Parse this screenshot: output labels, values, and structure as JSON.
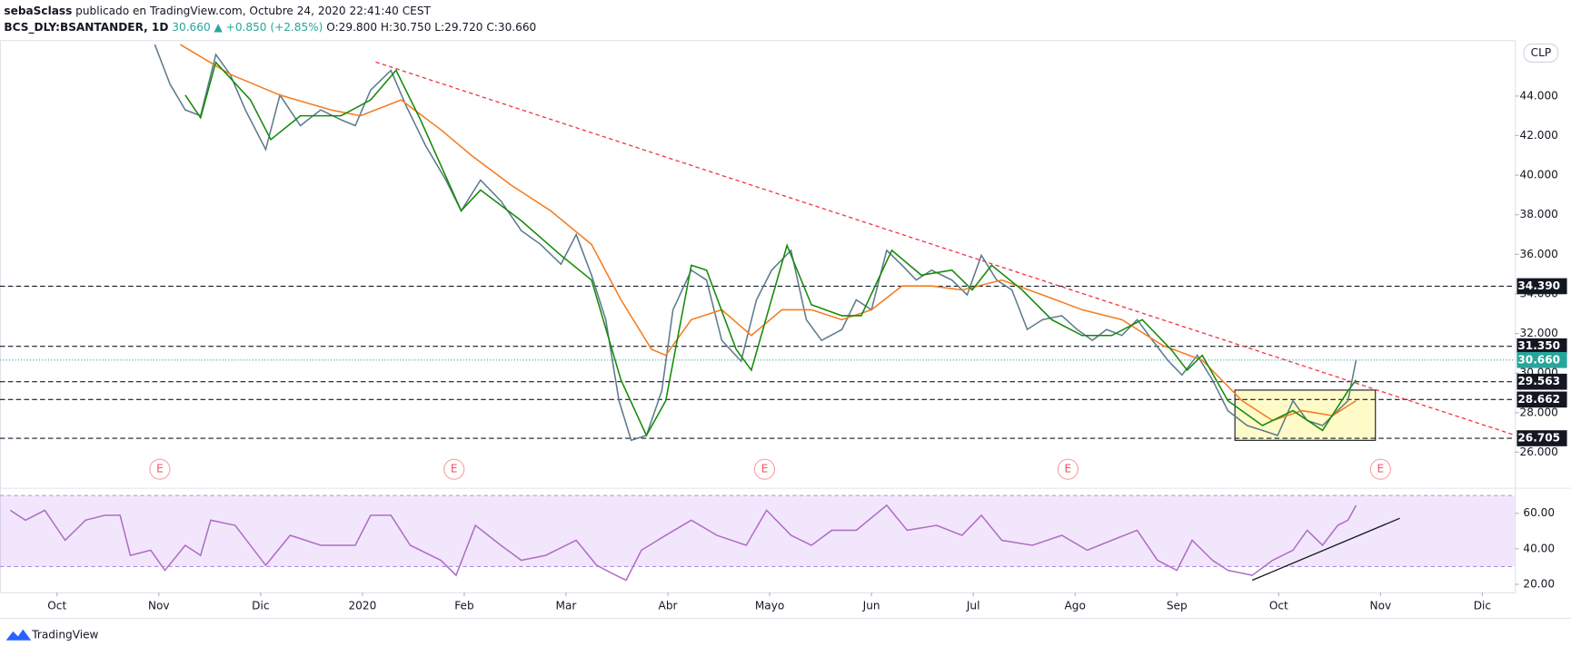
{
  "header": {
    "author": "sebaSclass",
    "published": "publicado en TradingView.com, Octubre 24, 2020 22:41:40 CEST",
    "symbol": "BCS_DLY:BSANTANDER, 1D",
    "last": "30.660",
    "change": "▲ +0.850 (+2.85%)",
    "ohlc": "O:29.800 H:30.750 L:29.720 C:30.660",
    "currency": "CLP"
  },
  "footer": {
    "logo": "TradingView"
  },
  "chart_data": [
    {
      "type": "line",
      "xlim": [
        -0.56,
        14.32
      ],
      "ylim": [
        24.33,
        46.83
      ],
      "yticks": [
        {
          "value": 26,
          "label": "26.000"
        },
        {
          "value": 28,
          "label": "28.000"
        },
        {
          "value": 30,
          "label": "30.000"
        },
        {
          "value": 32,
          "label": "32.000"
        },
        {
          "value": 34,
          "label": "34.000"
        },
        {
          "value": 36,
          "label": "36.000"
        },
        {
          "value": 38,
          "label": "38.000"
        },
        {
          "value": 40,
          "label": "40.000"
        },
        {
          "value": 42,
          "label": "42.000"
        },
        {
          "value": 44,
          "label": "44.000"
        }
      ],
      "series": [
        {
          "color": "#5d7a8c",
          "x": [
            0.96,
            1.11,
            1.26,
            1.41,
            1.56,
            1.7,
            1.85,
            2.05,
            2.19,
            2.39,
            2.59,
            2.79,
            2.93,
            3.08,
            3.28,
            3.43,
            3.62,
            3.82,
            3.97,
            4.16,
            4.36,
            4.56,
            4.75,
            4.95,
            5.1,
            5.25,
            5.39,
            5.52,
            5.64,
            5.79,
            5.94,
            6.05,
            6.23,
            6.38,
            6.53,
            6.72,
            6.87,
            7.02,
            7.21,
            7.36,
            7.51,
            7.71,
            7.85,
            8.0,
            8.15,
            8.3,
            8.44,
            8.59,
            8.79,
            8.94,
            9.08,
            9.23,
            9.38,
            9.53,
            9.68,
            9.87,
            10.02,
            10.17,
            10.31,
            10.46,
            10.61,
            10.76,
            10.91,
            11.05,
            11.2,
            11.35,
            11.5,
            11.69,
            11.84,
            11.99,
            12.14,
            12.28,
            12.43,
            12.58,
            12.68,
            12.76
          ],
          "values": [
            46.6,
            44.6,
            43.3,
            43.0,
            46.1,
            45.1,
            43.3,
            41.3,
            44.05,
            42.5,
            43.3,
            42.8,
            42.5,
            44.3,
            45.3,
            43.5,
            41.5,
            39.75,
            38.2,
            39.75,
            38.7,
            37.2,
            36.5,
            35.5,
            37.0,
            34.95,
            32.7,
            28.6,
            26.6,
            26.85,
            29.1,
            33.2,
            35.2,
            34.7,
            31.65,
            30.6,
            33.7,
            35.2,
            36.2,
            32.7,
            31.65,
            32.2,
            33.7,
            33.2,
            36.2,
            35.45,
            34.7,
            35.2,
            34.7,
            33.95,
            35.95,
            34.7,
            34.2,
            32.2,
            32.7,
            32.9,
            32.2,
            31.65,
            32.2,
            31.9,
            32.7,
            31.65,
            30.65,
            29.9,
            30.9,
            29.65,
            28.1,
            27.35,
            27.1,
            26.85,
            28.6,
            27.6,
            27.35,
            28.1,
            28.6,
            30.66
          ]
        },
        {
          "color": "#f57c1f",
          "x": [
            1.21,
            1.7,
            2.19,
            2.69,
            2.98,
            3.38,
            3.77,
            4.07,
            4.46,
            4.85,
            5.25,
            5.54,
            5.84,
            5.98,
            6.23,
            6.53,
            6.82,
            7.12,
            7.41,
            7.71,
            8.0,
            8.3,
            8.59,
            8.89,
            9.28,
            9.68,
            10.07,
            10.46,
            10.86,
            11.25,
            11.64,
            11.94,
            12.23,
            12.53,
            12.76
          ],
          "values": [
            46.6,
            45.1,
            44.05,
            43.3,
            43.0,
            43.8,
            42.3,
            41.0,
            39.5,
            38.2,
            36.5,
            33.7,
            31.2,
            30.9,
            32.7,
            33.2,
            31.9,
            33.2,
            33.2,
            32.7,
            33.2,
            34.4,
            34.4,
            34.2,
            34.7,
            33.95,
            33.2,
            32.7,
            31.4,
            30.65,
            28.6,
            27.6,
            28.1,
            27.85,
            28.6
          ]
        },
        {
          "color": "#138a07",
          "x": [
            1.26,
            1.41,
            1.56,
            1.9,
            2.1,
            2.39,
            2.79,
            3.08,
            3.33,
            3.57,
            3.97,
            4.16,
            4.56,
            4.95,
            5.25,
            5.54,
            5.79,
            5.98,
            6.23,
            6.38,
            6.67,
            6.82,
            7.17,
            7.41,
            7.71,
            7.9,
            8.2,
            8.49,
            8.79,
            8.99,
            9.18,
            9.48,
            9.77,
            10.07,
            10.36,
            10.66,
            10.95,
            11.1,
            11.25,
            11.5,
            11.84,
            12.14,
            12.43,
            12.68,
            12.76
          ],
          "values": [
            44.05,
            42.9,
            45.7,
            43.8,
            41.8,
            43.0,
            43.0,
            43.8,
            45.3,
            42.8,
            38.2,
            39.25,
            37.7,
            35.95,
            34.7,
            29.65,
            26.85,
            28.6,
            35.45,
            35.2,
            31.2,
            30.15,
            36.45,
            33.45,
            32.9,
            32.9,
            36.2,
            34.95,
            35.2,
            34.2,
            35.45,
            34.2,
            32.7,
            31.9,
            31.9,
            32.7,
            31.15,
            30.15,
            30.9,
            28.6,
            27.35,
            28.1,
            27.1,
            29.1,
            29.65
          ]
        }
      ],
      "levels": [
        {
          "value": 34.39,
          "label": "34.390"
        },
        {
          "value": 31.35,
          "label": "31.350"
        },
        {
          "value": 29.563,
          "label": "29.563"
        },
        {
          "value": 28.662,
          "label": "28.662"
        },
        {
          "value": 26.705,
          "label": "26.705"
        }
      ],
      "last_price": {
        "value": 30.66,
        "label": "30.660",
        "color": "#26a69a"
      },
      "trendline": {
        "x": [
          3.13,
          14.32
        ],
        "values": [
          45.72,
          26.86
        ],
        "color": "#f23645"
      },
      "box": {
        "x": [
          11.57,
          12.95
        ],
        "values": [
          29.14,
          26.6
        ]
      },
      "events": [
        {
          "x": 1.01,
          "label": "E"
        },
        {
          "x": 3.9,
          "label": "E"
        },
        {
          "x": 6.95,
          "label": "E"
        },
        {
          "x": 9.93,
          "label": "E"
        },
        {
          "x": 13.0,
          "label": "E"
        }
      ]
    },
    {
      "type": "line",
      "xlim": [
        -0.56,
        14.32
      ],
      "ylim": [
        15.5,
        72.96
      ],
      "band": [
        30,
        70
      ],
      "yticks": [
        {
          "value": 20,
          "label": "20.00"
        },
        {
          "value": 40,
          "label": "40.00"
        },
        {
          "value": 60,
          "label": "60.00"
        }
      ],
      "xticks": [
        {
          "value": 0,
          "label": "Oct"
        },
        {
          "value": 1,
          "label": "Nov"
        },
        {
          "value": 2,
          "label": "Dic"
        },
        {
          "value": 3,
          "label": "2020"
        },
        {
          "value": 4,
          "label": "Feb"
        },
        {
          "value": 5,
          "label": "Mar"
        },
        {
          "value": 6,
          "label": "Abr"
        },
        {
          "value": 7,
          "label": "Mayo"
        },
        {
          "value": 8,
          "label": "Jun"
        },
        {
          "value": 9,
          "label": "Jul"
        },
        {
          "value": 10,
          "label": "Ago"
        },
        {
          "value": 11,
          "label": "Sep"
        },
        {
          "value": 12,
          "label": "Oct"
        },
        {
          "value": 13,
          "label": "Nov"
        },
        {
          "value": 14,
          "label": "Dic"
        }
      ],
      "series": [
        {
          "color": "#b06fc4",
          "x": [
            -0.46,
            -0.31,
            -0.12,
            0.08,
            0.28,
            0.47,
            0.62,
            0.72,
            0.92,
            1.06,
            1.26,
            1.41,
            1.51,
            1.75,
            2.05,
            2.29,
            2.59,
            2.93,
            3.08,
            3.28,
            3.47,
            3.77,
            3.92,
            4.11,
            4.36,
            4.56,
            4.8,
            5.1,
            5.3,
            5.49,
            5.59,
            5.74,
            5.98,
            6.23,
            6.48,
            6.77,
            6.97,
            7.21,
            7.41,
            7.61,
            7.85,
            8.15,
            8.35,
            8.64,
            8.89,
            9.08,
            9.28,
            9.58,
            9.87,
            10.12,
            10.36,
            10.61,
            10.81,
            11.0,
            11.15,
            11.35,
            11.5,
            11.74,
            11.94,
            12.14,
            12.28,
            12.43,
            12.58,
            12.68,
            12.76
          ],
          "values": [
            61.7,
            56.1,
            61.7,
            44.8,
            56.1,
            58.9,
            58.9,
            36.3,
            39.2,
            27.9,
            42.0,
            36.3,
            56.1,
            53.2,
            30.7,
            47.6,
            42.0,
            42.0,
            58.9,
            58.9,
            42.0,
            33.5,
            25.1,
            53.2,
            42.0,
            33.5,
            36.3,
            44.8,
            30.7,
            25.1,
            22.3,
            39.2,
            47.6,
            56.1,
            47.6,
            42.0,
            61.7,
            47.6,
            42.0,
            50.4,
            50.4,
            64.5,
            50.4,
            53.2,
            47.6,
            58.9,
            44.8,
            42.0,
            47.6,
            39.2,
            44.8,
            50.4,
            33.5,
            27.9,
            44.8,
            33.5,
            27.9,
            25.1,
            33.5,
            39.2,
            50.4,
            42.0,
            53.2,
            56.1,
            64.5
          ]
        }
      ],
      "trendline": {
        "x": [
          11.74,
          13.19
        ],
        "values": [
          22.3,
          57.2
        ],
        "color": "#131722"
      }
    }
  ]
}
